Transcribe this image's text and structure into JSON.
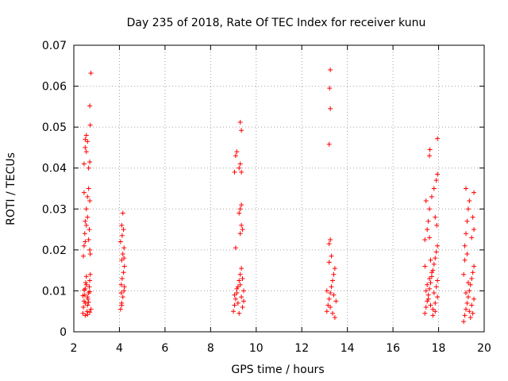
{
  "chart_data": {
    "type": "scatter",
    "title": "Day 235 of 2018, Rate Of TEC Index for receiver kunu",
    "xlabel": "GPS time / hours",
    "ylabel": "ROTI / TECUs",
    "xlim": [
      2,
      20
    ],
    "ylim": [
      0,
      0.07
    ],
    "x_ticks": [
      2,
      4,
      6,
      8,
      10,
      12,
      14,
      16,
      18,
      20
    ],
    "x_tick_labels": [
      "2",
      "4",
      "6",
      "8",
      "10",
      "12",
      "14",
      "16",
      "18",
      "20"
    ],
    "y_ticks": [
      0,
      0.01,
      0.02,
      0.03,
      0.04,
      0.05,
      0.06,
      0.07
    ],
    "y_tick_labels": [
      "0",
      "0.01",
      "0.02",
      "0.03",
      "0.04",
      "0.05",
      "0.06",
      "0.07"
    ],
    "grid": true,
    "marker": "+",
    "marker_color": "#ff0000",
    "series": [
      {
        "name": "ROTI",
        "points": [
          [
            2.4,
            0.0045
          ],
          [
            2.42,
            0.006
          ],
          [
            2.45,
            0.0075
          ],
          [
            2.48,
            0.009
          ],
          [
            2.5,
            0.0105
          ],
          [
            2.52,
            0.012
          ],
          [
            2.55,
            0.0135
          ],
          [
            2.58,
            0.005
          ],
          [
            2.6,
            0.0065
          ],
          [
            2.62,
            0.008
          ],
          [
            2.65,
            0.0095
          ],
          [
            2.68,
            0.011
          ],
          [
            2.7,
            0.0125
          ],
          [
            2.72,
            0.014
          ],
          [
            2.75,
            0.0055
          ],
          [
            2.4,
            0.0088
          ],
          [
            2.45,
            0.0102
          ],
          [
            2.5,
            0.007
          ],
          [
            2.55,
            0.0115
          ],
          [
            2.6,
            0.0085
          ],
          [
            2.65,
            0.0072
          ],
          [
            2.7,
            0.0098
          ],
          [
            2.5,
            0.004
          ],
          [
            2.6,
            0.0042
          ],
          [
            2.7,
            0.0048
          ],
          [
            2.42,
            0.0185
          ],
          [
            2.45,
            0.021
          ],
          [
            2.48,
            0.024
          ],
          [
            2.5,
            0.027
          ],
          [
            2.55,
            0.03
          ],
          [
            2.6,
            0.033
          ],
          [
            2.65,
            0.035
          ],
          [
            2.7,
            0.032
          ],
          [
            2.5,
            0.022
          ],
          [
            2.55,
            0.026
          ],
          [
            2.6,
            0.028
          ],
          [
            2.65,
            0.0225
          ],
          [
            2.7,
            0.02
          ],
          [
            2.72,
            0.019
          ],
          [
            2.68,
            0.025
          ],
          [
            2.45,
            0.034
          ],
          [
            2.45,
            0.041
          ],
          [
            2.5,
            0.045
          ],
          [
            2.55,
            0.048
          ],
          [
            2.6,
            0.0465
          ],
          [
            2.65,
            0.04
          ],
          [
            2.7,
            0.0415
          ],
          [
            2.5,
            0.047
          ],
          [
            2.55,
            0.044
          ],
          [
            2.72,
            0.0505
          ],
          [
            2.7,
            0.0552
          ],
          [
            2.75,
            0.0632
          ],
          [
            4.05,
            0.0055
          ],
          [
            4.1,
            0.007
          ],
          [
            4.15,
            0.0085
          ],
          [
            4.2,
            0.01
          ],
          [
            4.08,
            0.0115
          ],
          [
            4.12,
            0.013
          ],
          [
            4.18,
            0.0145
          ],
          [
            4.22,
            0.016
          ],
          [
            4.1,
            0.0175
          ],
          [
            4.15,
            0.019
          ],
          [
            4.2,
            0.0205
          ],
          [
            4.05,
            0.022
          ],
          [
            4.12,
            0.0235
          ],
          [
            4.18,
            0.025
          ],
          [
            4.1,
            0.026
          ],
          [
            4.15,
            0.029
          ],
          [
            4.2,
            0.018
          ],
          [
            4.08,
            0.0095
          ],
          [
            4.22,
            0.011
          ],
          [
            4.1,
            0.0065
          ],
          [
            9.0,
            0.005
          ],
          [
            9.05,
            0.0065
          ],
          [
            9.1,
            0.008
          ],
          [
            9.15,
            0.0095
          ],
          [
            9.2,
            0.011
          ],
          [
            9.25,
            0.0125
          ],
          [
            9.3,
            0.014
          ],
          [
            9.35,
            0.0155
          ],
          [
            9.4,
            0.006
          ],
          [
            9.45,
            0.0075
          ],
          [
            9.05,
            0.009
          ],
          [
            9.15,
            0.0105
          ],
          [
            9.25,
            0.0045
          ],
          [
            9.35,
            0.0085
          ],
          [
            9.45,
            0.01
          ],
          [
            9.3,
            0.0115
          ],
          [
            9.2,
            0.007
          ],
          [
            9.4,
            0.013
          ],
          [
            9.1,
            0.0205
          ],
          [
            9.3,
            0.024
          ],
          [
            9.35,
            0.026
          ],
          [
            9.25,
            0.029
          ],
          [
            9.3,
            0.03
          ],
          [
            9.35,
            0.031
          ],
          [
            9.4,
            0.025
          ],
          [
            9.05,
            0.039
          ],
          [
            9.1,
            0.043
          ],
          [
            9.15,
            0.044
          ],
          [
            9.25,
            0.04
          ],
          [
            9.3,
            0.041
          ],
          [
            9.35,
            0.039
          ],
          [
            9.35,
            0.0492
          ],
          [
            9.3,
            0.0512
          ],
          [
            13.1,
            0.005
          ],
          [
            13.15,
            0.0065
          ],
          [
            13.2,
            0.008
          ],
          [
            13.25,
            0.0095
          ],
          [
            13.3,
            0.011
          ],
          [
            13.35,
            0.0125
          ],
          [
            13.4,
            0.014
          ],
          [
            13.45,
            0.0155
          ],
          [
            13.2,
            0.017
          ],
          [
            13.3,
            0.0185
          ],
          [
            13.1,
            0.01
          ],
          [
            13.25,
            0.006
          ],
          [
            13.35,
            0.0045
          ],
          [
            13.4,
            0.009
          ],
          [
            13.5,
            0.0075
          ],
          [
            13.45,
            0.0035
          ],
          [
            13.2,
            0.0215
          ],
          [
            13.25,
            0.0225
          ],
          [
            13.2,
            0.0458
          ],
          [
            13.25,
            0.0545
          ],
          [
            13.22,
            0.0595
          ],
          [
            13.25,
            0.064
          ],
          [
            17.4,
            0.0045
          ],
          [
            17.45,
            0.006
          ],
          [
            17.5,
            0.0075
          ],
          [
            17.55,
            0.009
          ],
          [
            17.6,
            0.0105
          ],
          [
            17.65,
            0.012
          ],
          [
            17.7,
            0.0135
          ],
          [
            17.75,
            0.015
          ],
          [
            17.8,
            0.0165
          ],
          [
            17.85,
            0.018
          ],
          [
            17.9,
            0.0195
          ],
          [
            17.95,
            0.021
          ],
          [
            17.45,
            0.01
          ],
          [
            17.55,
            0.008
          ],
          [
            17.65,
            0.0065
          ],
          [
            17.75,
            0.0055
          ],
          [
            17.85,
            0.007
          ],
          [
            17.95,
            0.0085
          ],
          [
            17.5,
            0.0115
          ],
          [
            17.6,
            0.013
          ],
          [
            17.7,
            0.0145
          ],
          [
            17.8,
            0.0095
          ],
          [
            17.9,
            0.011
          ],
          [
            17.4,
            0.016
          ],
          [
            17.65,
            0.0175
          ],
          [
            17.75,
            0.004
          ],
          [
            17.85,
            0.005
          ],
          [
            17.95,
            0.0125
          ],
          [
            17.4,
            0.0225
          ],
          [
            17.5,
            0.025
          ],
          [
            17.55,
            0.027
          ],
          [
            17.6,
            0.03
          ],
          [
            17.7,
            0.033
          ],
          [
            17.8,
            0.035
          ],
          [
            17.9,
            0.037
          ],
          [
            17.95,
            0.0385
          ],
          [
            17.45,
            0.032
          ],
          [
            17.6,
            0.023
          ],
          [
            17.85,
            0.028
          ],
          [
            17.92,
            0.026
          ],
          [
            17.6,
            0.043
          ],
          [
            17.62,
            0.0445
          ],
          [
            17.95,
            0.0472
          ],
          [
            19.1,
            0.0025
          ],
          [
            19.15,
            0.004
          ],
          [
            19.2,
            0.0055
          ],
          [
            19.25,
            0.007
          ],
          [
            19.3,
            0.0085
          ],
          [
            19.35,
            0.01
          ],
          [
            19.4,
            0.0115
          ],
          [
            19.45,
            0.013
          ],
          [
            19.5,
            0.0145
          ],
          [
            19.55,
            0.016
          ],
          [
            19.15,
            0.0175
          ],
          [
            19.25,
            0.019
          ],
          [
            19.35,
            0.005
          ],
          [
            19.45,
            0.0065
          ],
          [
            19.55,
            0.008
          ],
          [
            19.2,
            0.0095
          ],
          [
            19.4,
            0.0035
          ],
          [
            19.5,
            0.0045
          ],
          [
            19.3,
            0.012
          ],
          [
            19.1,
            0.014
          ],
          [
            19.15,
            0.021
          ],
          [
            19.2,
            0.024
          ],
          [
            19.25,
            0.027
          ],
          [
            19.3,
            0.03
          ],
          [
            19.35,
            0.032
          ],
          [
            19.2,
            0.035
          ],
          [
            19.5,
            0.028
          ],
          [
            19.55,
            0.025
          ],
          [
            19.45,
            0.023
          ],
          [
            19.55,
            0.034
          ]
        ]
      }
    ]
  }
}
